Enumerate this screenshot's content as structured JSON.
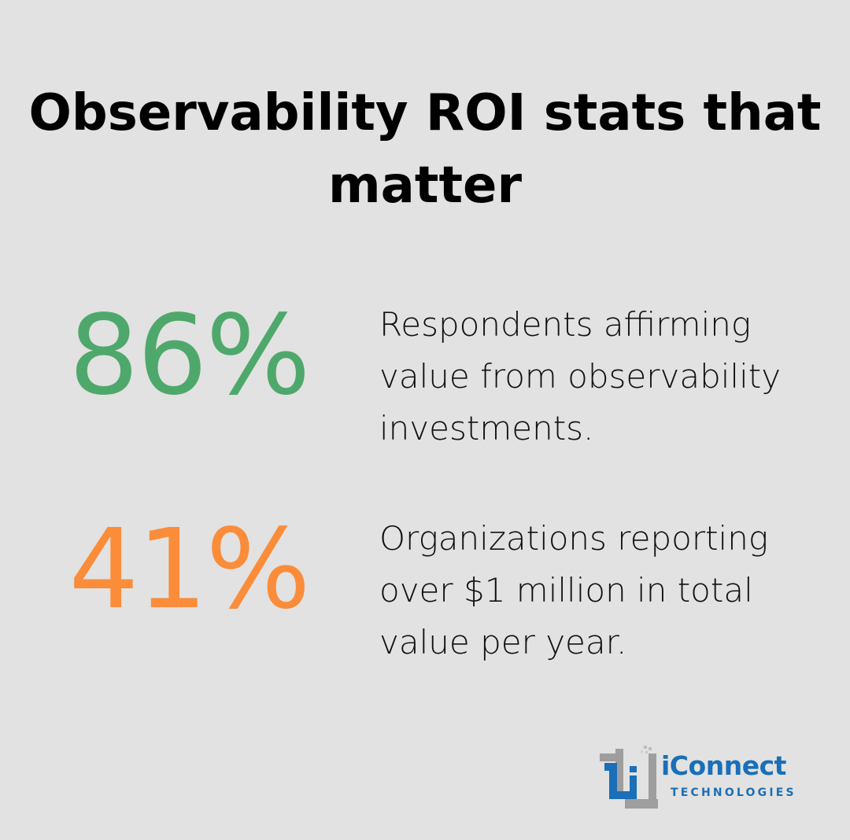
{
  "title": "Observability ROI stats that matter",
  "stats": [
    {
      "value": "86%",
      "description": "Respondents affirming value from observability investments.",
      "color": "#4fa86b"
    },
    {
      "value": "41%",
      "description": "Organizations reporting over $1 million in total value per year.",
      "color": "#fb8c3a"
    }
  ],
  "logo": {
    "name": "iConnect",
    "tagline": "TECHNOLOGIES",
    "icon": "iconnect-logo-icon",
    "primary_color": "#1a6fb8",
    "secondary_color": "#9e9e9e"
  }
}
